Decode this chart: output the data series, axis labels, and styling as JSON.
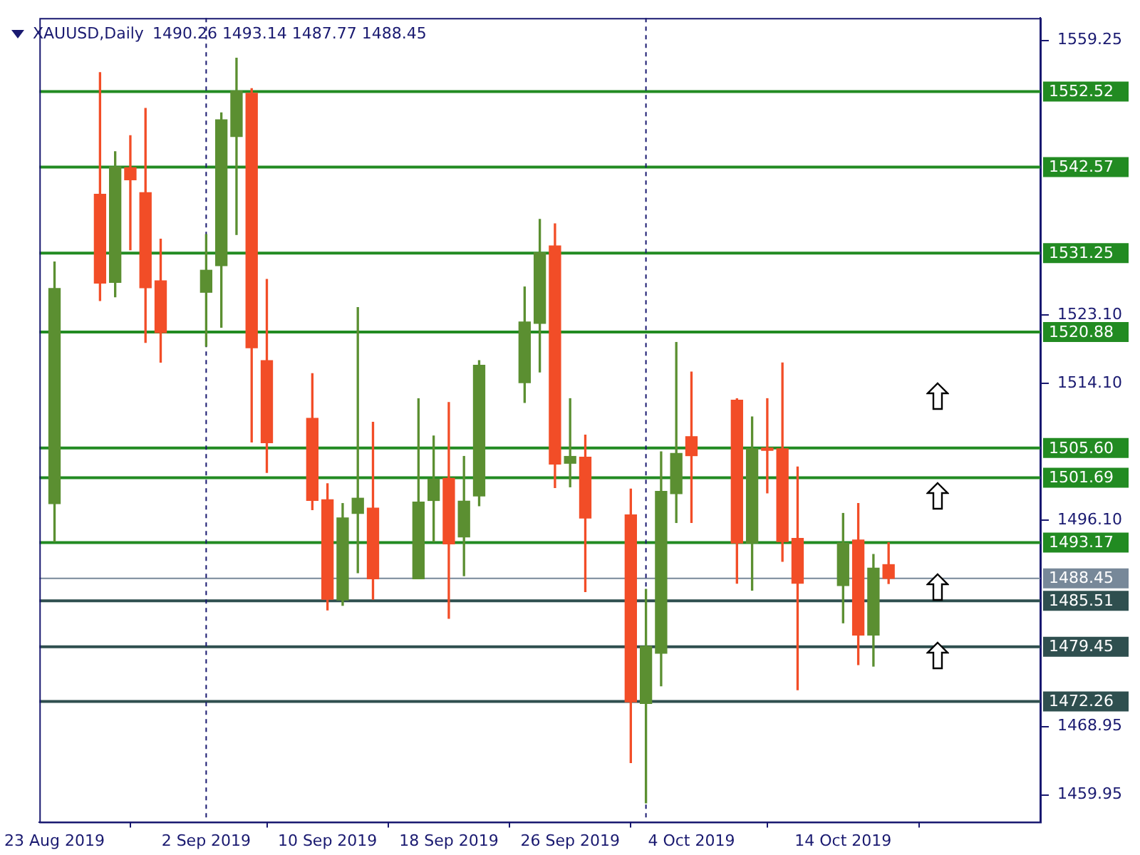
{
  "chart_data": {
    "type": "candlestick",
    "title": "XAUUSD,Daily",
    "subtitle": "1490.26 1493.14 1487.77 1488.45",
    "x": [
      "2019-08-23",
      "2019-08-26",
      "2019-08-27",
      "2019-08-28",
      "2019-08-29",
      "2019-08-30",
      "2019-09-02",
      "2019-09-03",
      "2019-09-04",
      "2019-09-05",
      "2019-09-06",
      "2019-09-09",
      "2019-09-10",
      "2019-09-11",
      "2019-09-12",
      "2019-09-13",
      "2019-09-16",
      "2019-09-17",
      "2019-09-18",
      "2019-09-19",
      "2019-09-20",
      "2019-09-23",
      "2019-09-24",
      "2019-09-25",
      "2019-09-26",
      "2019-09-27",
      "2019-09-30",
      "2019-10-01",
      "2019-10-02",
      "2019-10-03",
      "2019-10-04",
      "2019-10-07",
      "2019-10-08",
      "2019-10-09",
      "2019-10-10",
      "2019-10-11",
      "2019-10-14",
      "2019-10-15",
      "2019-10-16",
      "2019-10-17"
    ],
    "ohlc": [
      [
        1498.3,
        1530.1,
        1493.3,
        1526.6
      ],
      [
        1539.0,
        1555.0,
        1525.0,
        1527.3
      ],
      [
        1527.4,
        1544.6,
        1525.5,
        1542.6
      ],
      [
        1542.5,
        1546.7,
        1531.7,
        1540.9
      ],
      [
        1539.2,
        1550.3,
        1519.5,
        1526.7
      ],
      [
        1527.6,
        1533.1,
        1516.9,
        1520.8
      ],
      [
        1526.1,
        1533.7,
        1519.0,
        1529.0
      ],
      [
        1529.6,
        1549.7,
        1521.5,
        1548.8
      ],
      [
        1546.6,
        1556.9,
        1533.7,
        1552.6
      ],
      [
        1552.3,
        1552.9,
        1506.4,
        1518.8
      ],
      [
        1517.1,
        1527.8,
        1502.4,
        1506.3
      ],
      [
        1509.5,
        1515.4,
        1497.5,
        1498.7
      ],
      [
        1498.8,
        1500.9,
        1484.3,
        1485.7
      ],
      [
        1485.6,
        1498.3,
        1484.9,
        1496.4
      ],
      [
        1497.0,
        1524.1,
        1489.2,
        1499.0
      ],
      [
        1497.7,
        1509.0,
        1485.7,
        1488.4
      ],
      [
        1488.4,
        1512.1,
        1488.4,
        1498.5
      ],
      [
        1498.7,
        1507.2,
        1493.3,
        1501.5
      ],
      [
        1501.6,
        1511.6,
        1483.2,
        1493.0
      ],
      [
        1493.9,
        1504.5,
        1488.8,
        1498.6
      ],
      [
        1499.3,
        1517.1,
        1498.0,
        1516.5
      ],
      [
        1514.2,
        1526.8,
        1511.6,
        1522.2
      ],
      [
        1522.0,
        1535.7,
        1515.6,
        1531.3
      ],
      [
        1532.2,
        1535.1,
        1500.4,
        1503.5
      ],
      [
        1503.6,
        1512.1,
        1500.5,
        1504.5
      ],
      [
        1504.4,
        1507.3,
        1486.7,
        1496.4
      ],
      [
        1496.8,
        1500.2,
        1464.2,
        1472.2
      ],
      [
        1472.0,
        1487.0,
        1458.9,
        1479.5
      ],
      [
        1478.6,
        1505.1,
        1474.3,
        1499.9
      ],
      [
        1499.6,
        1519.5,
        1495.8,
        1504.9
      ],
      [
        1507.1,
        1515.6,
        1495.8,
        1504.6
      ],
      [
        1511.9,
        1512.1,
        1487.8,
        1493.1
      ],
      [
        1493.1,
        1509.7,
        1486.9,
        1505.5
      ],
      [
        1505.6,
        1512.1,
        1499.7,
        1505.3
      ],
      [
        1505.5,
        1516.8,
        1490.7,
        1493.3
      ],
      [
        1493.7,
        1503.1,
        1473.8,
        1487.8
      ],
      [
        1487.5,
        1497.0,
        1482.6,
        1493.1
      ],
      [
        1493.5,
        1498.3,
        1477.1,
        1481.0
      ],
      [
        1481.0,
        1491.6,
        1476.9,
        1489.8
      ],
      [
        1490.26,
        1493.14,
        1487.77,
        1488.45
      ]
    ],
    "colors": [
      "#5b8f31",
      "#f24d27",
      "#5b8f31",
      "#f24d27",
      "#f24d27",
      "#f24d27",
      "#5b8f31",
      "#5b8f31",
      "#5b8f31",
      "#f24d27",
      "#f24d27",
      "#f24d27",
      "#f24d27",
      "#5b8f31",
      "#5b8f31",
      "#f24d27",
      "#5b8f31",
      "#5b8f31",
      "#f24d27",
      "#5b8f31",
      "#5b8f31",
      "#5b8f31",
      "#5b8f31",
      "#f24d27",
      "#5b8f31",
      "#f24d27",
      "#f24d27",
      "#5b8f31",
      "#5b8f31",
      "#5b8f31",
      "#f24d27",
      "#f24d27",
      "#5b8f31",
      "#f24d27",
      "#f24d27",
      "#f24d27",
      "#5b8f31",
      "#f24d27",
      "#5b8f31",
      "#f24d27"
    ],
    "xticks": [
      {
        "value": "2019-08-23",
        "label": "23 Aug 2019"
      },
      {
        "value": "2019-09-02",
        "label": "2 Sep 2019"
      },
      {
        "value": "2019-09-10",
        "label": "10 Sep 2019"
      },
      {
        "value": "2019-09-18",
        "label": "18 Sep 2019"
      },
      {
        "value": "2019-09-26",
        "label": "26 Sep 2019"
      },
      {
        "value": "2019-10-04",
        "label": "4 Oct 2019"
      },
      {
        "value": "2019-10-14",
        "label": "14 Oct 2019"
      }
    ],
    "xlim": [
      "2019-08-22",
      "2019-10-27"
    ],
    "ylim": [
      1456.4,
      1562.2
    ],
    "yticks": [
      1559.25,
      {
        "value": 1523.1,
        "label": "1523.10"
      },
      {
        "value": 1514.1,
        "label": "1514.10"
      },
      {
        "value": 1496.1,
        "label": "1496.10"
      },
      1468.95,
      1459.95
    ],
    "ref_lines": [
      {
        "axis": "y",
        "value": 1552.52,
        "label": "1552.52",
        "color": "#228b22"
      },
      {
        "axis": "y",
        "value": 1542.57,
        "label": "1542.57",
        "color": "#228b22"
      },
      {
        "axis": "y",
        "value": 1531.25,
        "label": "1531.25",
        "color": "#228b22"
      },
      {
        "axis": "y",
        "value": 1520.88,
        "label": "1520.88",
        "color": "#228b22"
      },
      {
        "axis": "y",
        "value": 1505.6,
        "label": "1505.60",
        "color": "#228b22"
      },
      {
        "axis": "y",
        "value": 1501.69,
        "label": "1501.69",
        "color": "#228b22"
      },
      {
        "axis": "y",
        "value": 1493.17,
        "label": "1493.17",
        "color": "#228b22"
      },
      {
        "axis": "y",
        "value": 1488.45,
        "label": "1488.45",
        "color": "#778899"
      },
      {
        "axis": "y",
        "value": 1485.51,
        "label": "1485.51",
        "color": "#2f4f4f"
      },
      {
        "axis": "y",
        "value": 1479.45,
        "label": "1479.45",
        "color": "#2f4f4f"
      },
      {
        "axis": "y",
        "value": 1472.26,
        "label": "1472.26",
        "color": "#2f4f4f"
      },
      {
        "axis": "x",
        "value": "2019-09-02",
        "color": "#191970",
        "line_style": "dashed"
      },
      {
        "axis": "x",
        "value": "2019-10-01",
        "color": "#191970",
        "line_style": "dashed"
      }
    ]
  }
}
